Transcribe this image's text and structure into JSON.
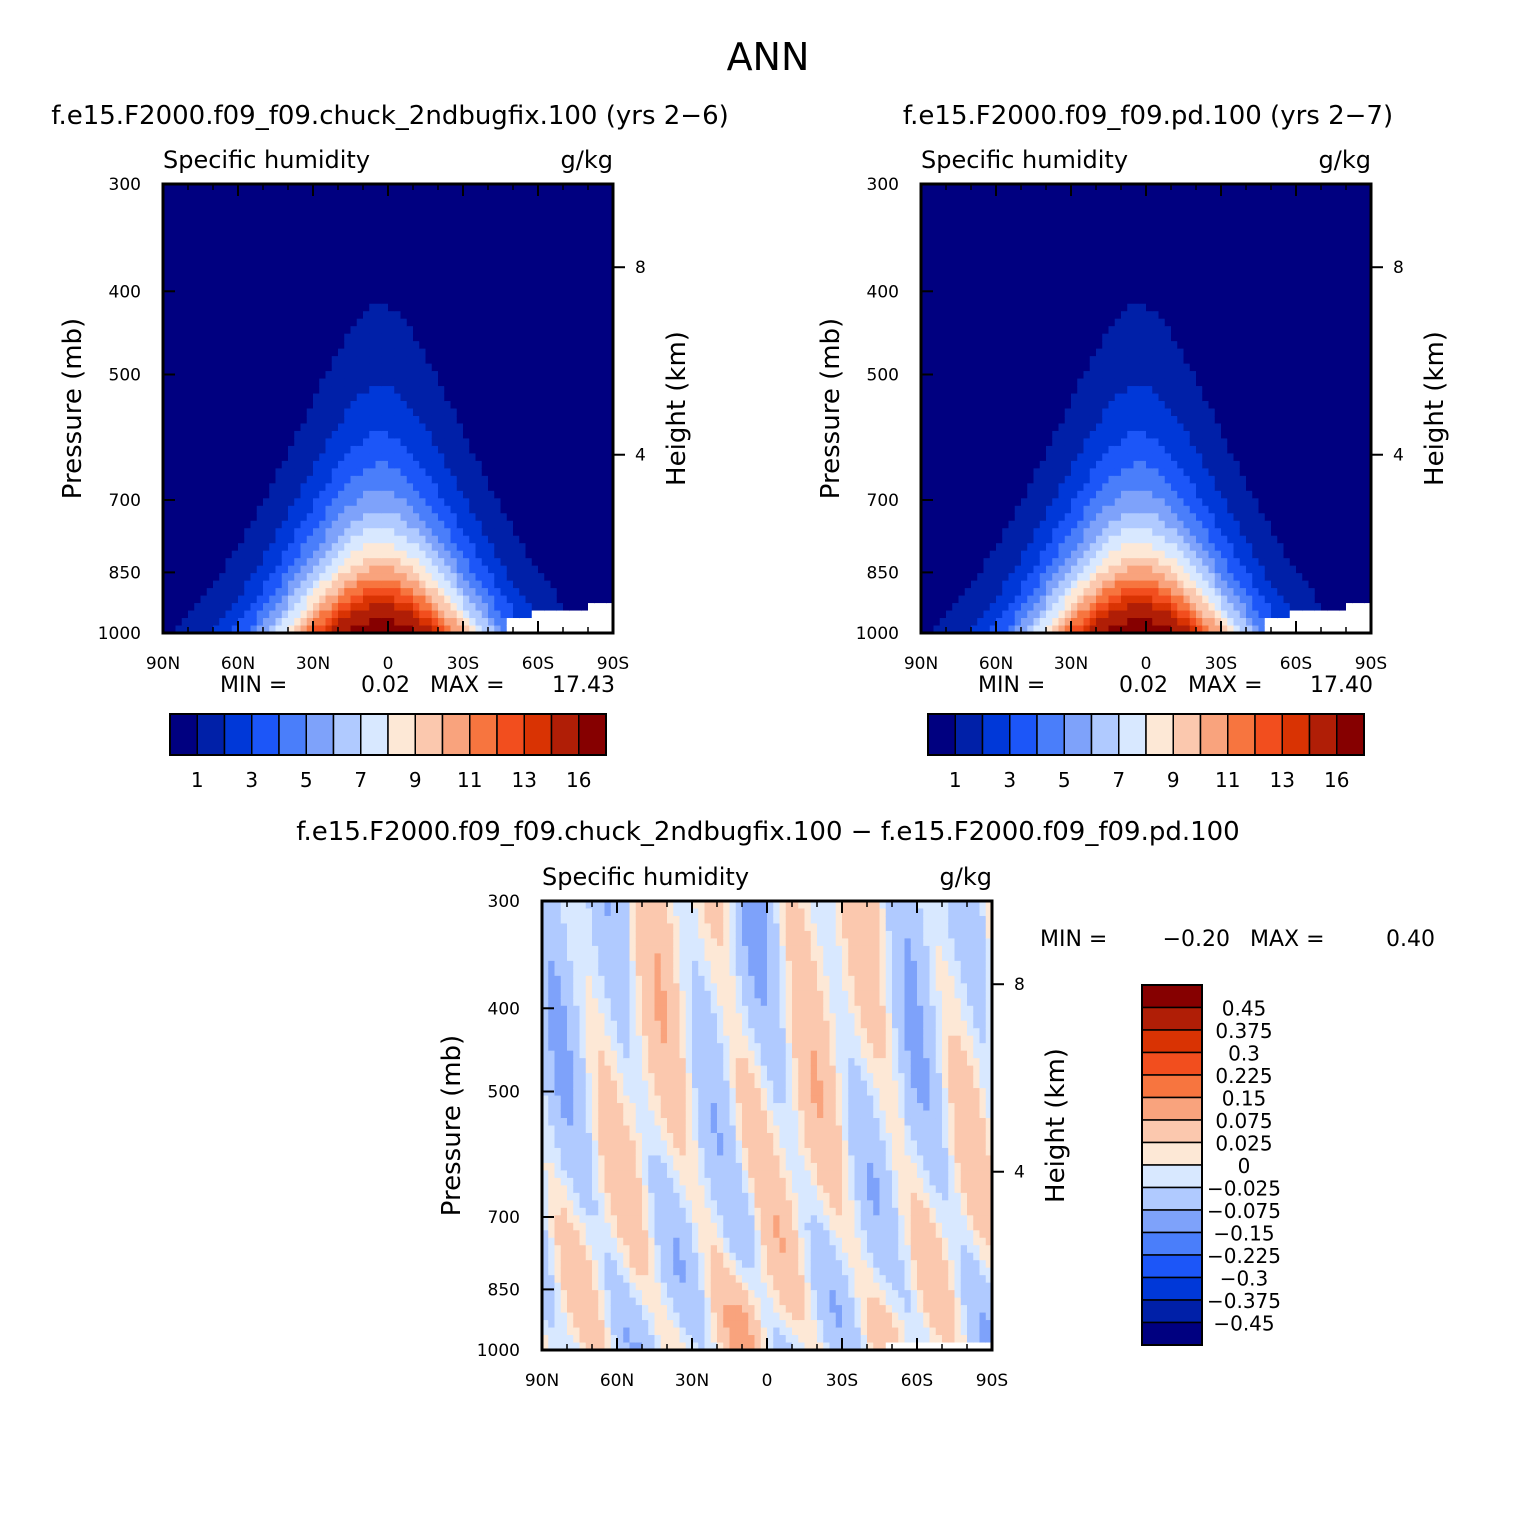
{
  "page_title": "ANN",
  "colors": {
    "seq": [
      "#000080",
      "#0020a8",
      "#0038d8",
      "#1c56f8",
      "#4a7efa",
      "#7ea2fa",
      "#b0caff",
      "#d8e8ff",
      "#fde8d6",
      "#fbc8ae",
      "#f9a37d",
      "#f7753f",
      "#f24e1e",
      "#d93303",
      "#b01e06",
      "#860000"
    ],
    "diff": [
      "#000080",
      "#0020a8",
      "#0038d8",
      "#1c56f8",
      "#4a7efa",
      "#7ea2fa",
      "#b0caff",
      "#d8e8ff",
      "#fde8d6",
      "#fbc8ae",
      "#f9a37d",
      "#f7753f",
      "#f24e1e",
      "#d93303",
      "#b01e06",
      "#860000"
    ]
  },
  "chart_data": [
    {
      "type": "contour",
      "panel": "left",
      "title": "f.e15.F2000.f09_f09.chuck_2ndbugfix.100 (yrs 2−6)",
      "variable": "Specific humidity",
      "units": "g/kg",
      "ylabel": "Pressure (mb)",
      "ylabel_right": "Height (km)",
      "x_ticks": [
        "90N",
        "60N",
        "30N",
        "0",
        "30S",
        "60S",
        "90S"
      ],
      "y_ticks": [
        "300",
        "400",
        "500",
        "700",
        "850",
        "1000"
      ],
      "y2_ticks": [
        "8",
        "4"
      ],
      "ylim": [
        1000,
        300
      ],
      "min_label": "MIN =",
      "min_value": "0.02",
      "max_label": "MAX =",
      "max_value": "17.43",
      "colorbar_labels": [
        "1",
        "3",
        "5",
        "7",
        "9",
        "11",
        "13",
        "16"
      ],
      "levels": [
        1,
        2,
        3,
        4,
        5,
        6,
        7,
        8,
        9,
        10,
        11,
        12,
        13,
        14,
        16
      ]
    },
    {
      "type": "contour",
      "panel": "right",
      "title": "f.e15.F2000.f09_f09.pd.100 (yrs 2−7)",
      "variable": "Specific humidity",
      "units": "g/kg",
      "ylabel": "Pressure (mb)",
      "ylabel_right": "Height (km)",
      "x_ticks": [
        "90N",
        "60N",
        "30N",
        "0",
        "30S",
        "60S",
        "90S"
      ],
      "y_ticks": [
        "300",
        "400",
        "500",
        "700",
        "850",
        "1000"
      ],
      "y2_ticks": [
        "8",
        "4"
      ],
      "ylim": [
        1000,
        300
      ],
      "min_label": "MIN =",
      "min_value": "0.02",
      "max_label": "MAX =",
      "max_value": "17.40",
      "colorbar_labels": [
        "1",
        "3",
        "5",
        "7",
        "9",
        "11",
        "13",
        "16"
      ],
      "levels": [
        1,
        2,
        3,
        4,
        5,
        6,
        7,
        8,
        9,
        10,
        11,
        12,
        13,
        14,
        16
      ]
    },
    {
      "type": "contour",
      "panel": "diff",
      "title": "f.e15.F2000.f09_f09.chuck_2ndbugfix.100 − f.e15.F2000.f09_f09.pd.100",
      "variable": "Specific humidity",
      "units": "g/kg",
      "ylabel": "Pressure (mb)",
      "ylabel_right": "Height (km)",
      "x_ticks": [
        "90N",
        "60N",
        "30N",
        "0",
        "30S",
        "60S",
        "90S"
      ],
      "y_ticks": [
        "300",
        "400",
        "500",
        "700",
        "850",
        "1000"
      ],
      "y2_ticks": [
        "8",
        "4"
      ],
      "ylim": [
        1000,
        300
      ],
      "min_label": "MIN =",
      "min_value": "−0.20",
      "max_label": "MAX =",
      "max_value": "0.40",
      "colorbar_labels": [
        "0.45",
        "0.375",
        "0.3",
        "0.225",
        "0.15",
        "0.075",
        "0.025",
        "0",
        "−0.025",
        "−0.075",
        "−0.15",
        "−0.225",
        "−0.3",
        "−0.375",
        "−0.45"
      ]
    }
  ]
}
